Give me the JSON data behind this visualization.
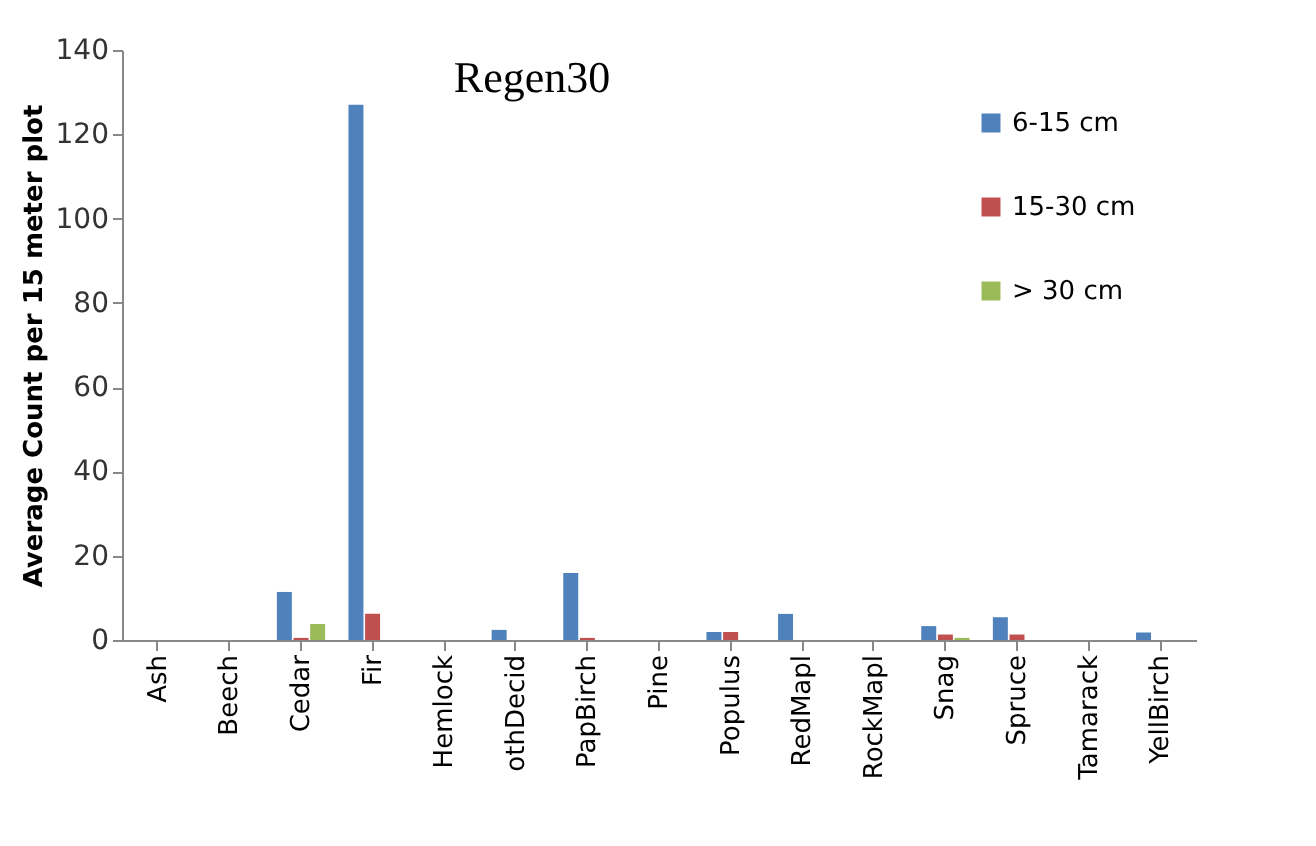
{
  "chart_data": {
    "type": "bar",
    "title": "Regen30",
    "ylabel": "Average Count per 15 meter plot",
    "categories": [
      "Ash",
      "Beech",
      "Cedar",
      "Fir",
      "Hemlock",
      "othDecid",
      "PapBirch",
      "Pine",
      "Populus",
      "RedMapl",
      "RockMapl",
      "Snag",
      "Spruce",
      "Tamarack",
      "YellBirch"
    ],
    "series": [
      {
        "name": "6-15 cm",
        "color": "#4f81bd",
        "values": [
          0,
          0,
          11.4,
          127,
          0,
          2.4,
          15.9,
          0,
          1.9,
          6.2,
          0,
          3.3,
          5.4,
          0,
          1.8
        ]
      },
      {
        "name": "15-30 cm",
        "color": "#c0504d",
        "values": [
          0,
          0,
          0.5,
          6.2,
          0,
          0,
          0.5,
          0,
          1.9,
          0,
          0,
          1.3,
          1.3,
          0,
          0
        ]
      },
      {
        "name": "> 30 cm",
        "color": "#9bbb59",
        "values": [
          0,
          0,
          3.8,
          0,
          0,
          0,
          0,
          0,
          0,
          0,
          0,
          0.5,
          0,
          0,
          0
        ]
      }
    ],
    "ylim": [
      0,
      140
    ],
    "yticks": [
      0,
      20,
      40,
      60,
      80,
      100,
      120,
      140
    ],
    "grid": false,
    "legend": "top right"
  }
}
